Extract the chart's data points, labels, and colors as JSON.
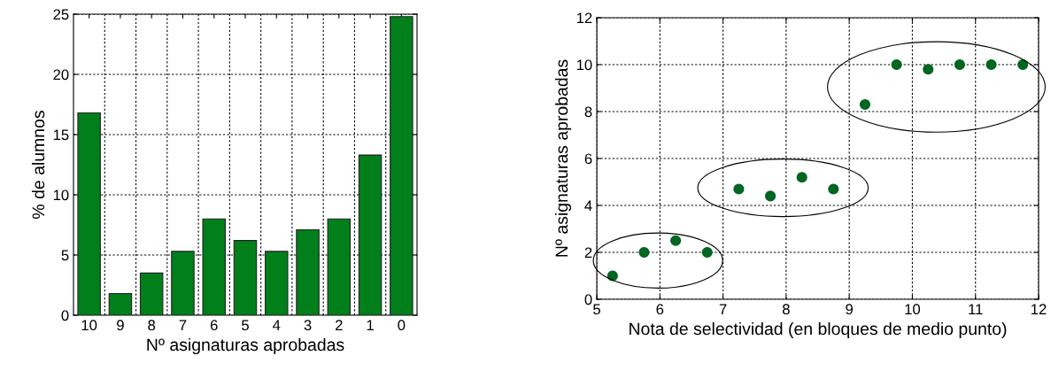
{
  "chart_data": [
    {
      "type": "bar",
      "xlabel": "Nº asignaturas aprobadas",
      "ylabel": "% de alumnos",
      "categories": [
        "10",
        "9",
        "8",
        "7",
        "6",
        "5",
        "4",
        "3",
        "2",
        "1",
        "0"
      ],
      "values": [
        16.8,
        1.8,
        3.5,
        5.3,
        8.0,
        6.2,
        5.3,
        7.1,
        8.0,
        13.3,
        24.8
      ],
      "color": "#007f1a",
      "ylim": [
        0,
        25
      ],
      "yticks": [
        0,
        5,
        10,
        15,
        20,
        25
      ],
      "grid": true
    },
    {
      "type": "scatter",
      "xlabel": "Nota de selectividad (en bloques de medio punto)",
      "ylabel": "Nº asignaturas aprobadas",
      "x": [
        5.25,
        5.75,
        6.25,
        6.75,
        7.25,
        7.75,
        8.25,
        8.75,
        9.25,
        9.75,
        10.25,
        10.75,
        11.25,
        11.75
      ],
      "values": [
        1,
        2,
        2.5,
        2,
        4.7,
        4.4,
        5.2,
        4.7,
        8.3,
        10,
        9.8,
        10,
        10,
        10
      ],
      "color": "#006622",
      "marker": "circle",
      "xlim": [
        5,
        12
      ],
      "ylim": [
        0,
        12
      ],
      "xticks": [
        5,
        6,
        7,
        8,
        9,
        10,
        11,
        12
      ],
      "yticks": [
        0,
        2,
        4,
        6,
        8,
        10,
        12
      ],
      "grid": true
    }
  ]
}
